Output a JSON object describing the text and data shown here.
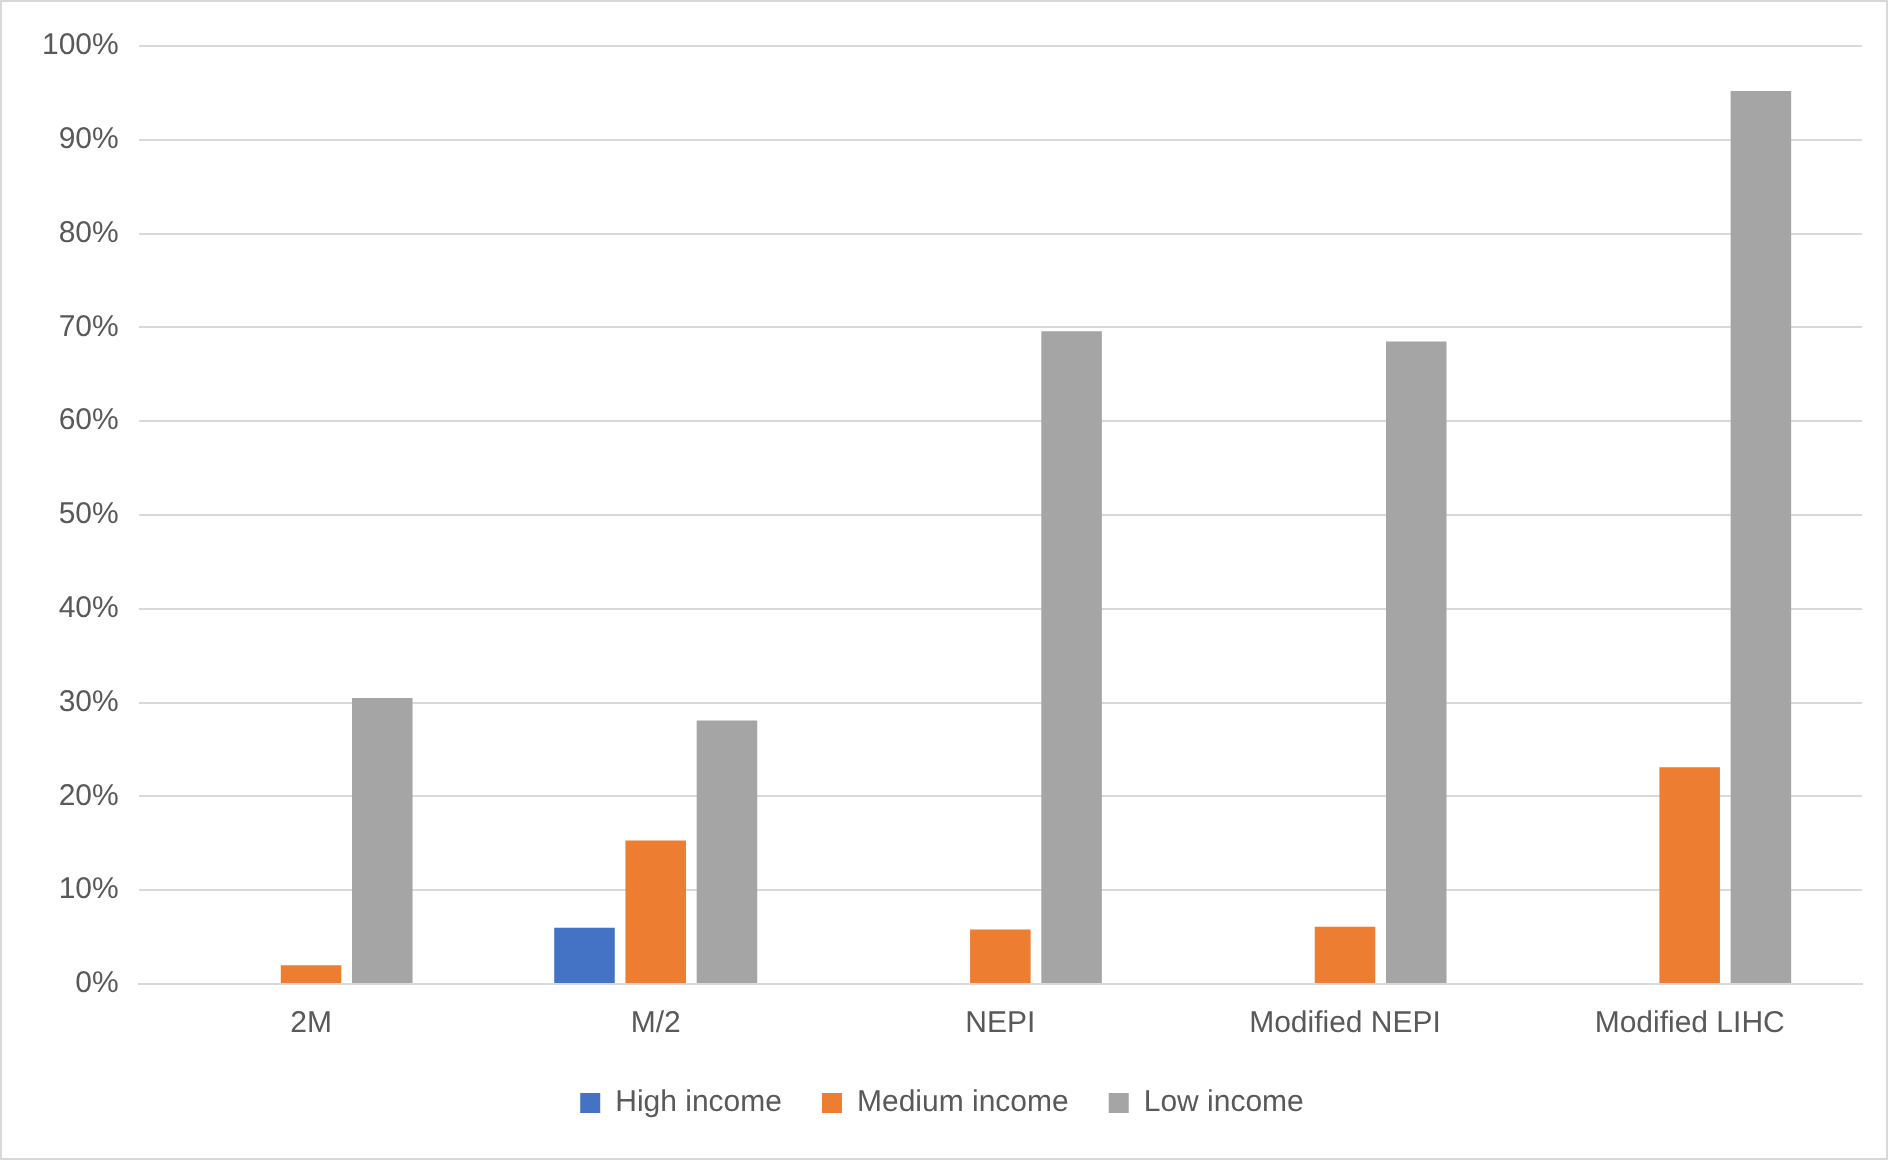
{
  "chart_data": {
    "type": "bar",
    "categories": [
      "2M",
      "M/2",
      "NEPI",
      "Modified NEPI",
      "Modified LIHC"
    ],
    "series": [
      {
        "name": "High income",
        "color": "#4472c4",
        "values": [
          0,
          6,
          0,
          0,
          0
        ]
      },
      {
        "name": "Medium income",
        "color": "#ed7d31",
        "values": [
          2,
          15.3,
          5.8,
          6.1,
          23.1
        ]
      },
      {
        "name": "Low income",
        "color": "#a5a5a5",
        "values": [
          30.5,
          28.1,
          69.6,
          68.5,
          95.2
        ]
      }
    ],
    "ylim": [
      0,
      100
    ],
    "yticks": [
      {
        "value": 0,
        "label": "0%"
      },
      {
        "value": 10,
        "label": "10%"
      },
      {
        "value": 20,
        "label": "20%"
      },
      {
        "value": 30,
        "label": "30%"
      },
      {
        "value": 40,
        "label": "40%"
      },
      {
        "value": 50,
        "label": "50%"
      },
      {
        "value": 60,
        "label": "60%"
      },
      {
        "value": 70,
        "label": "70%"
      },
      {
        "value": 80,
        "label": "80%"
      },
      {
        "value": 90,
        "label": "90%"
      },
      {
        "value": 100,
        "label": "100%"
      }
    ],
    "grid": "y",
    "legend": "bottom"
  }
}
